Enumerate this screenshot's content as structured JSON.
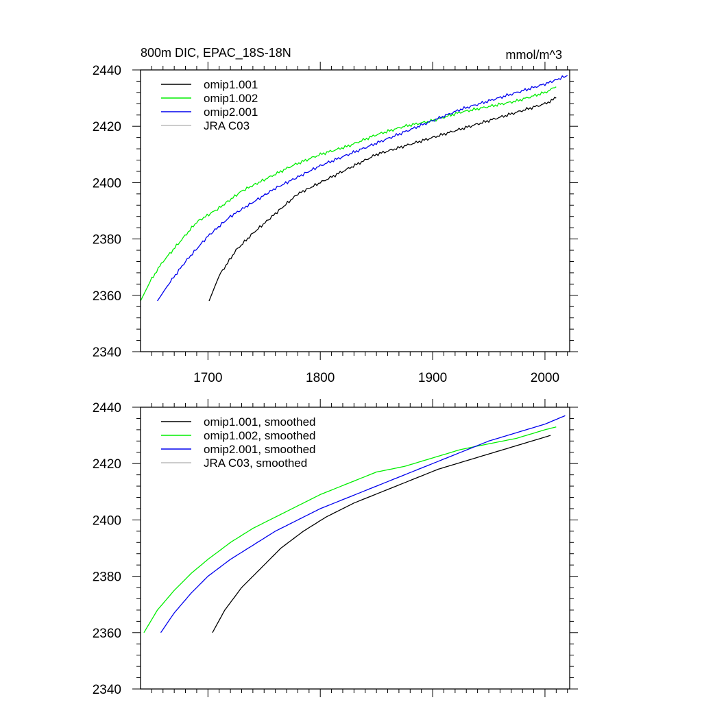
{
  "chart_data": [
    {
      "type": "line",
      "title": "800m DIC, EPAC_18S-18N",
      "units": "mmol/m^3",
      "xlim": [
        1640,
        2022
      ],
      "ylim": [
        2340,
        2440
      ],
      "x_ticks": [
        1700,
        1800,
        1900,
        2000
      ],
      "x_ticks_labeled": true,
      "y_ticks": [
        2340,
        2360,
        2380,
        2400,
        2420,
        2440
      ],
      "legend": "top-left",
      "noise": true,
      "series": [
        {
          "name": "omip1.001",
          "color": "#000000",
          "x": [
            1701,
            1710,
            1725,
            1740,
            1760,
            1780,
            1800,
            1825,
            1850,
            1875,
            1900,
            1925,
            1950,
            1975,
            2000,
            2010
          ],
          "y": [
            2358,
            2367,
            2376,
            2382,
            2389,
            2396,
            2400,
            2405,
            2410,
            2413,
            2416,
            2419,
            2422,
            2425,
            2428,
            2430
          ]
        },
        {
          "name": "omip1.002",
          "color": "#00ee00",
          "x": [
            1640,
            1650,
            1660,
            1675,
            1690,
            1710,
            1730,
            1750,
            1775,
            1800,
            1825,
            1850,
            1875,
            1900,
            1925,
            1950,
            1975,
            2000,
            2010
          ],
          "y": [
            2358,
            2366,
            2372,
            2379,
            2386,
            2391,
            2397,
            2401,
            2406,
            2410,
            2413,
            2417,
            2420,
            2422,
            2425,
            2427,
            2429,
            2432,
            2434
          ]
        },
        {
          "name": "omip2.001",
          "color": "#0000ee",
          "x": [
            1655,
            1665,
            1680,
            1700,
            1720,
            1740,
            1760,
            1780,
            1800,
            1825,
            1850,
            1875,
            1900,
            1925,
            1950,
            1975,
            2000,
            2020
          ],
          "y": [
            2358,
            2364,
            2372,
            2381,
            2388,
            2393,
            2398,
            2402,
            2406,
            2410,
            2414,
            2418,
            2422,
            2426,
            2429,
            2432,
            2435,
            2438
          ]
        },
        {
          "name": "JRA C03",
          "color": "#bbbbbb",
          "x": [],
          "y": []
        }
      ]
    },
    {
      "type": "line",
      "title": "",
      "units": "",
      "xlim": [
        1640,
        2022
      ],
      "ylim": [
        2340,
        2440
      ],
      "x_ticks": [
        1700,
        1800,
        1900,
        2000
      ],
      "x_ticks_labeled": false,
      "y_ticks": [
        2340,
        2360,
        2380,
        2400,
        2420,
        2440
      ],
      "legend": "top-left",
      "noise": false,
      "series": [
        {
          "name": "omip1.001, smoothed",
          "color": "#000000",
          "x": [
            1704,
            1715,
            1730,
            1745,
            1765,
            1785,
            1805,
            1830,
            1855,
            1880,
            1905,
            1930,
            1955,
            1980,
            2005
          ],
          "y": [
            2360,
            2368,
            2376,
            2382,
            2390,
            2396,
            2401,
            2406,
            2410,
            2414,
            2418,
            2421,
            2424,
            2427,
            2430
          ]
        },
        {
          "name": "omip1.002, smoothed",
          "color": "#00ee00",
          "x": [
            1643,
            1655,
            1670,
            1685,
            1700,
            1720,
            1740,
            1760,
            1780,
            1800,
            1825,
            1850,
            1875,
            1900,
            1925,
            1950,
            1975,
            2000,
            2010
          ],
          "y": [
            2360,
            2368,
            2375,
            2381,
            2386,
            2392,
            2397,
            2401,
            2405,
            2409,
            2413,
            2417,
            2419,
            2422,
            2425,
            2427,
            2429,
            2432,
            2433
          ]
        },
        {
          "name": "omip2.001, smoothed",
          "color": "#0000ee",
          "x": [
            1658,
            1670,
            1685,
            1700,
            1720,
            1740,
            1760,
            1780,
            1800,
            1825,
            1850,
            1875,
            1900,
            1925,
            1950,
            1975,
            2000,
            2018
          ],
          "y": [
            2360,
            2367,
            2374,
            2380,
            2386,
            2391,
            2396,
            2400,
            2404,
            2408,
            2412,
            2416,
            2420,
            2424,
            2428,
            2431,
            2434,
            2437
          ]
        },
        {
          "name": "JRA C03, smoothed",
          "color": "#bbbbbb",
          "x": [],
          "y": []
        }
      ]
    }
  ]
}
